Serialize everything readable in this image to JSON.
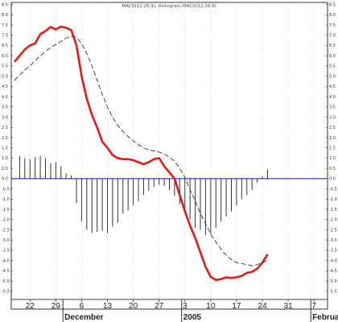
{
  "chart_data": {
    "type": "line",
    "title": "MACD(12,26,9), Histogram-MACD(12,26,9)",
    "ylim": [
      -5.9,
      8.6
    ],
    "y_ticks": [
      "8.5",
      "8.0",
      "7.5",
      "7.0",
      "6.5",
      "6.0",
      "5.5",
      "5.0",
      "4.5",
      "4.0",
      "3.5",
      "3.0",
      "2.5",
      "2.0",
      "1.5",
      "1.0",
      "0.5",
      "0.0",
      "-0.5",
      "-1.0",
      "-1.5",
      "-2.0",
      "-2.5",
      "-3.0",
      "-3.5",
      "-4.0",
      "-4.5",
      "-5.0",
      "-5.5"
    ],
    "y_tick_values": [
      8.5,
      8.0,
      7.5,
      7.0,
      6.5,
      6.0,
      5.5,
      5.0,
      4.5,
      4.0,
      3.5,
      3.0,
      2.5,
      2.0,
      1.5,
      1.0,
      0.5,
      0.0,
      -0.5,
      -1.0,
      -1.5,
      -2.0,
      -2.5,
      -3.0,
      -3.5,
      -4.0,
      -4.5,
      -5.0,
      -5.5
    ],
    "date_labels": [
      "22",
      "29",
      "6",
      "13",
      "20",
      "27",
      "3",
      "10",
      "17",
      "24",
      "31",
      "7"
    ],
    "date_label_index": [
      3,
      8,
      13,
      18,
      23,
      28,
      33,
      38,
      43,
      48,
      53,
      58
    ],
    "month_labels": [
      "December",
      "2005",
      "February"
    ],
    "month_label_index": [
      10,
      33,
      58
    ],
    "month_boundary_index": [
      10,
      33,
      58
    ],
    "n_slots": 61,
    "zero_line": 0,
    "colors": {
      "macd": "#e31a1c",
      "signal": "#333333",
      "histogram": "#333333",
      "zero": "#2b45d6",
      "grid": "#b8b8b8"
    },
    "series": [
      {
        "name": "MACD",
        "style": "solid",
        "x": [
          0,
          1,
          2,
          3,
          4,
          5,
          6,
          7,
          8,
          9,
          10,
          11,
          12,
          13,
          14,
          15,
          16,
          17,
          18,
          19,
          20,
          21,
          22,
          23,
          24,
          25,
          26,
          27,
          28,
          29,
          30,
          31,
          32,
          33,
          34,
          35,
          36,
          37,
          38,
          39,
          40,
          41,
          42,
          43,
          44,
          45,
          46,
          47,
          48,
          49
        ],
        "values": [
          5.7,
          6.0,
          6.3,
          6.5,
          6.6,
          7.05,
          7.2,
          7.4,
          7.28,
          7.42,
          7.36,
          7.25,
          6.5,
          5.0,
          3.9,
          3.1,
          2.5,
          1.8,
          1.5,
          1.15,
          1.0,
          0.95,
          0.95,
          0.9,
          0.8,
          0.7,
          0.8,
          0.95,
          1.0,
          0.6,
          0.3,
          0.0,
          -0.8,
          -1.6,
          -2.3,
          -2.9,
          -3.6,
          -4.3,
          -4.8,
          -4.95,
          -4.9,
          -4.82,
          -4.85,
          -4.82,
          -4.75,
          -4.6,
          -4.55,
          -4.4,
          -4.1,
          -3.7
        ]
      },
      {
        "name": "Signal",
        "style": "dashed",
        "x": [
          0,
          1,
          2,
          3,
          4,
          5,
          6,
          7,
          8,
          9,
          10,
          11,
          12,
          13,
          14,
          15,
          16,
          17,
          18,
          19,
          20,
          21,
          22,
          23,
          24,
          25,
          26,
          27,
          28,
          29,
          30,
          31,
          32,
          33,
          34,
          35,
          36,
          37,
          38,
          39,
          40,
          41,
          42,
          43,
          44,
          45,
          46,
          47,
          48,
          49
        ],
        "values": [
          4.8,
          5.05,
          5.3,
          5.5,
          5.75,
          6.0,
          6.2,
          6.4,
          6.55,
          6.7,
          6.85,
          6.95,
          6.9,
          6.6,
          6.1,
          5.5,
          4.8,
          4.1,
          3.5,
          3.0,
          2.6,
          2.3,
          2.05,
          1.85,
          1.65,
          1.5,
          1.4,
          1.35,
          1.3,
          1.2,
          1.05,
          0.85,
          0.5,
          0.05,
          -0.55,
          -1.1,
          -1.7,
          -2.2,
          -2.7,
          -3.1,
          -3.45,
          -3.75,
          -3.95,
          -4.1,
          -4.15,
          -4.2,
          -4.25,
          -4.2,
          -4.1,
          -4.0
        ]
      },
      {
        "name": "Histogram",
        "style": "bars",
        "x": [
          1,
          2,
          3,
          4,
          5,
          6,
          7,
          8,
          9,
          10,
          11,
          12,
          13,
          14,
          15,
          16,
          17,
          18,
          19,
          20,
          21,
          22,
          23,
          24,
          25,
          26,
          27,
          28,
          29,
          30,
          31,
          32,
          33,
          34,
          35,
          36,
          37,
          38,
          39,
          40,
          41,
          42,
          43,
          44,
          45,
          46,
          47,
          48,
          49
        ],
        "values": [
          1.1,
          1.0,
          0.95,
          1.05,
          1.1,
          1.0,
          0.75,
          0.8,
          0.6,
          0.25,
          0.15,
          -1.2,
          -2.1,
          -2.5,
          -2.65,
          -2.6,
          -2.55,
          -2.65,
          -2.35,
          -2.15,
          -1.7,
          -1.55,
          -1.3,
          -1.1,
          -0.8,
          -0.6,
          -0.4,
          -0.3,
          -0.35,
          -0.55,
          -0.85,
          -1.25,
          -1.65,
          -2.0,
          -2.4,
          -2.5,
          -2.75,
          -2.7,
          -2.4,
          -2.1,
          -1.85,
          -1.6,
          -1.3,
          -1.0,
          -0.8,
          -0.55,
          -0.2,
          0.1,
          0.45
        ]
      }
    ]
  }
}
